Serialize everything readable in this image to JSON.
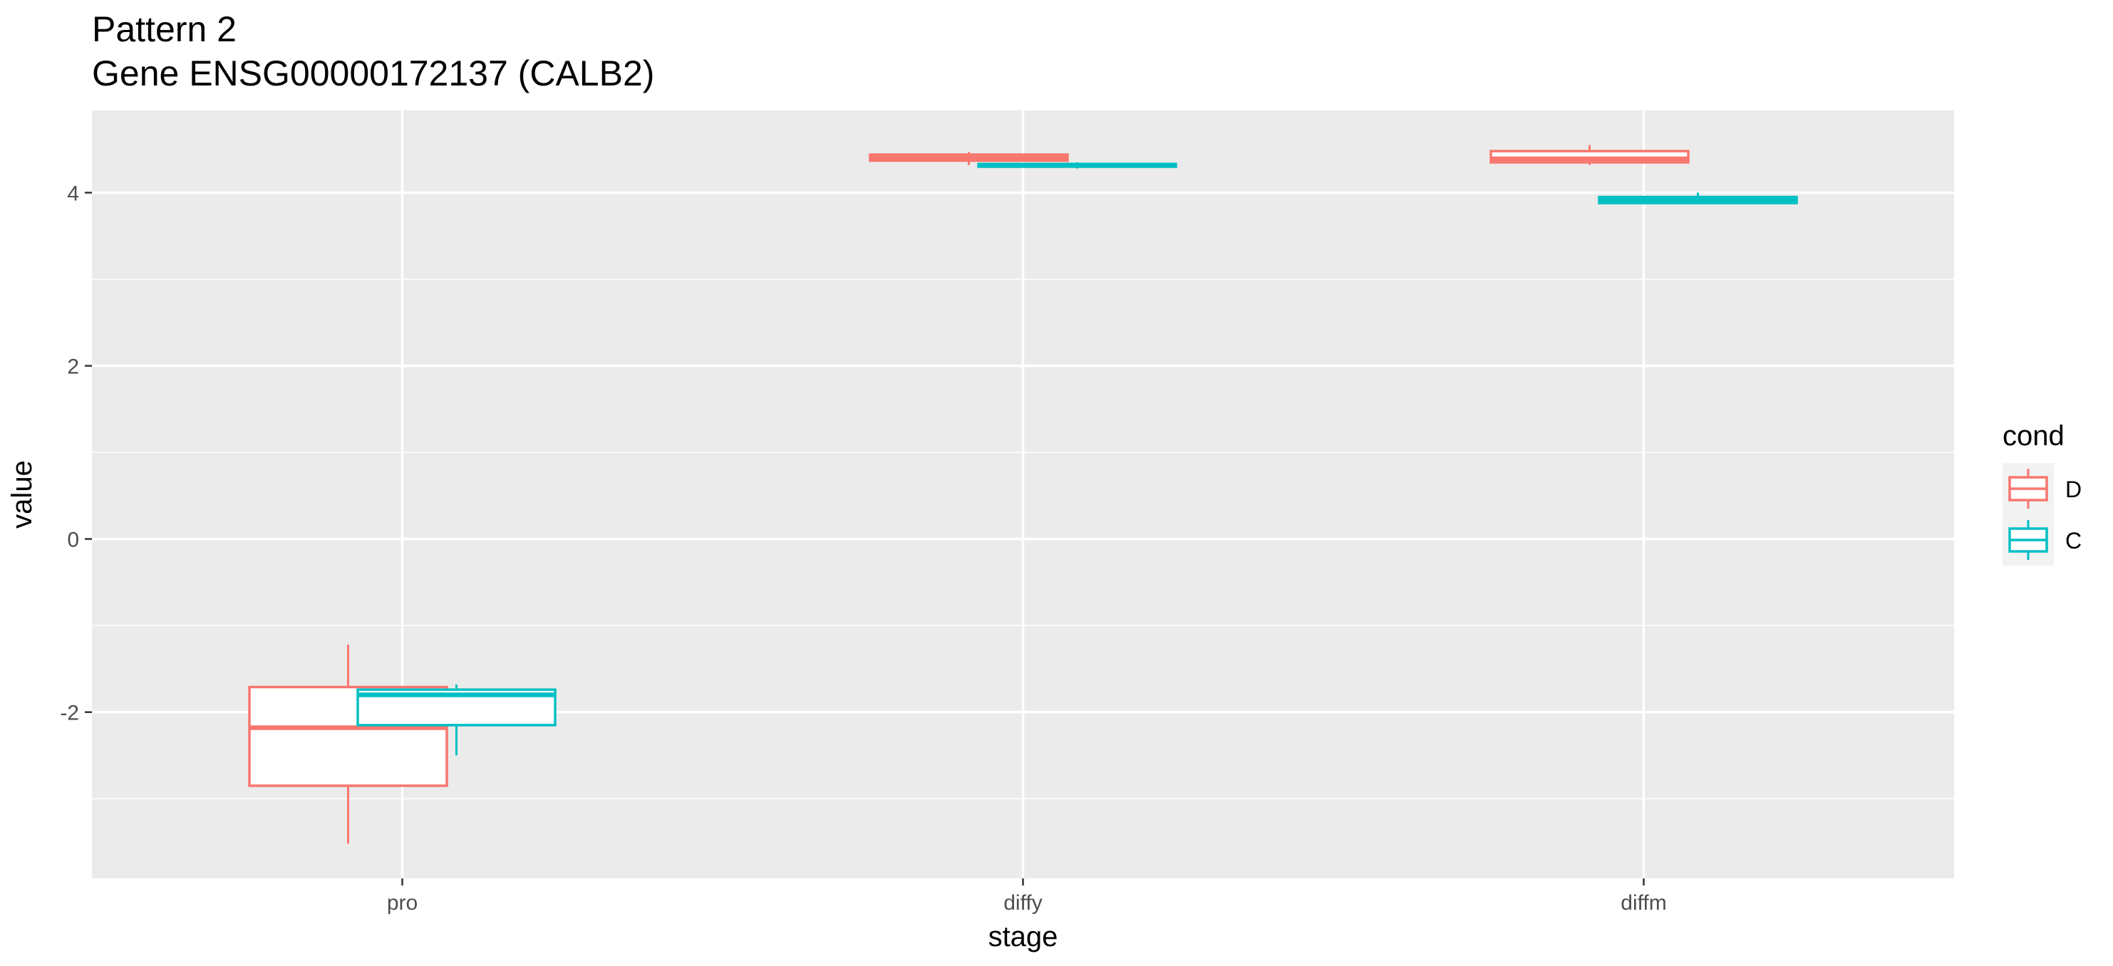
{
  "chart_data": {
    "type": "boxplot",
    "title": "Pattern 2",
    "subtitle": "Gene ENSG00000172137 (CALB2)",
    "xlabel": "stage",
    "ylabel": "value",
    "categories": [
      "pro",
      "diffy",
      "diffm"
    ],
    "y_ticks": [
      -2,
      0,
      2,
      4
    ],
    "y_tick_labels": [
      "-2",
      "0",
      "2",
      "4"
    ],
    "ylim": [
      -3.92,
      4.95
    ],
    "grid": true,
    "legend": {
      "title": "cond",
      "position": "right"
    },
    "series": [
      {
        "name": "D",
        "color": "#F8766D",
        "boxes": [
          {
            "category": "pro",
            "whisker_low": -3.52,
            "q1": -2.85,
            "median": -2.18,
            "q3": -1.71,
            "whisker_high": -1.22
          },
          {
            "category": "diffy",
            "whisker_low": 4.32,
            "q1": 4.37,
            "median": 4.4,
            "q3": 4.44,
            "whisker_high": 4.47
          },
          {
            "category": "diffm",
            "whisker_low": 4.32,
            "q1": 4.35,
            "median": 4.39,
            "q3": 4.48,
            "whisker_high": 4.55
          }
        ]
      },
      {
        "name": "C",
        "color": "#00BFC4",
        "boxes": [
          {
            "category": "pro",
            "whisker_low": -2.5,
            "q1": -2.15,
            "median": -1.8,
            "q3": -1.74,
            "whisker_high": -1.68
          },
          {
            "category": "diffy",
            "whisker_low": 4.28,
            "q1": 4.3,
            "median": 4.32,
            "q3": 4.33,
            "whisker_high": 4.35
          },
          {
            "category": "diffm",
            "whisker_low": 3.87,
            "q1": 3.88,
            "median": 3.91,
            "q3": 3.95,
            "whisker_high": 4.0
          }
        ]
      }
    ]
  }
}
